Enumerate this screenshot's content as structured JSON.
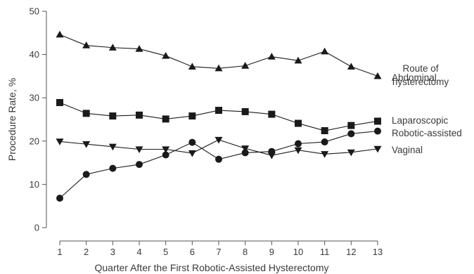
{
  "chart_data": {
    "type": "line",
    "x": [
      1,
      2,
      3,
      4,
      5,
      6,
      7,
      8,
      9,
      10,
      11,
      12,
      13
    ],
    "xlabel": "Quarter After the First Robotic-Assisted Hysterectomy",
    "ylabel": "Procedure Rate, %",
    "xlim": [
      1,
      13
    ],
    "ylim": [
      0,
      50
    ],
    "yticks": [
      0,
      10,
      20,
      30,
      40,
      50
    ],
    "grid": false,
    "legend_title": "Route of hysterectomy",
    "legend_title_lines": [
      "Route of",
      "hysterectomy"
    ],
    "legend_placement": "right, labels at line ends",
    "series": [
      {
        "name": "Abdominal",
        "marker": "triangle-up",
        "color": "#1a1a1a",
        "values": [
          44.6,
          42.1,
          41.6,
          41.3,
          39.7,
          37.2,
          36.8,
          37.4,
          39.5,
          38.6,
          40.7,
          37.2,
          35.0
        ]
      },
      {
        "name": "Laparoscopic",
        "marker": "square",
        "color": "#1a1a1a",
        "values": [
          28.9,
          26.4,
          25.8,
          26.0,
          25.1,
          25.8,
          27.1,
          26.8,
          26.2,
          24.1,
          22.4,
          23.6,
          24.6
        ]
      },
      {
        "name": "Robotic-assisted",
        "marker": "circle",
        "color": "#1a1a1a",
        "values": [
          6.8,
          12.3,
          13.7,
          14.6,
          16.8,
          19.7,
          15.8,
          17.3,
          17.6,
          19.4,
          19.8,
          21.7,
          22.3
        ]
      },
      {
        "name": "Vaginal",
        "marker": "triangle-down",
        "color": "#1a1a1a",
        "values": [
          19.9,
          19.3,
          18.7,
          18.1,
          18.1,
          17.2,
          20.3,
          18.3,
          16.7,
          17.9,
          17.0,
          17.4,
          18.2
        ]
      }
    ]
  }
}
